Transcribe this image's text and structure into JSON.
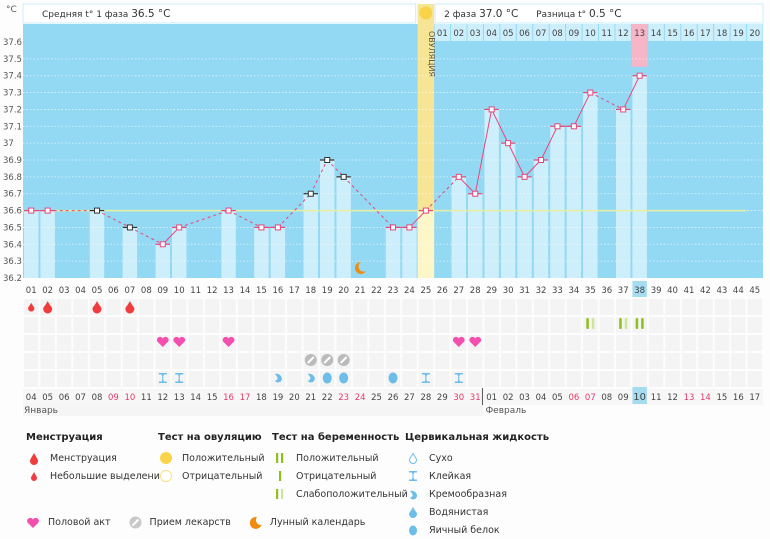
{
  "header": {
    "unit": "°C",
    "phase1_label": "Средняя t° 1 фаза",
    "phase1_value": "36.5 °C",
    "phase2_label": "2 фаза",
    "phase2_value": "37.0 °C",
    "diff_label": "Разница t°",
    "diff_value": "0.5 °C",
    "ovulation_label": "ОВУЛЯЦИЯ"
  },
  "chart_data": {
    "type": "bar",
    "title": "Базальная температура",
    "ylabel": "°C",
    "ylim": [
      36.2,
      37.6
    ],
    "yticks": [
      "37.6",
      "37.5",
      "37.4",
      "37.3",
      "37.2",
      "37.1",
      "37",
      "36.9",
      "36.8",
      "36.7",
      "36.6",
      "36.5",
      "36.4",
      "36.3",
      "36.2"
    ],
    "coverline": 36.6,
    "ovulation_day": 25,
    "today_day": 38,
    "days": [
      "01",
      "02",
      "03",
      "04",
      "05",
      "06",
      "07",
      "08",
      "09",
      "10",
      "11",
      "12",
      "13",
      "14",
      "15",
      "16",
      "17",
      "18",
      "19",
      "20",
      "21",
      "22",
      "23",
      "24",
      "25",
      "26",
      "27",
      "28",
      "29",
      "30",
      "31",
      "32",
      "33",
      "34",
      "35",
      "36",
      "37",
      "38",
      "39",
      "40",
      "41",
      "42",
      "43",
      "44",
      "45"
    ],
    "temperatures": [
      36.6,
      36.6,
      null,
      null,
      36.6,
      null,
      36.5,
      null,
      36.4,
      36.5,
      null,
      null,
      36.6,
      null,
      36.5,
      36.5,
      null,
      36.7,
      36.9,
      36.8,
      null,
      null,
      36.5,
      36.5,
      36.6,
      null,
      36.8,
      36.7,
      37.2,
      37.0,
      36.8,
      36.9,
      37.1,
      37.1,
      37.3,
      null,
      37.2,
      37.4,
      null,
      null,
      null,
      null,
      null,
      null,
      null
    ],
    "excluded_days": [
      5,
      7,
      18,
      19,
      20
    ],
    "phase2_days": [
      "01",
      "02",
      "03",
      "04",
      "05",
      "06",
      "07",
      "08",
      "09",
      "10",
      "11",
      "12",
      "13",
      "14",
      "15",
      "16",
      "17",
      "18",
      "19",
      "20"
    ],
    "phase2_highlight": "13"
  },
  "calendar": {
    "dates": [
      "04",
      "05",
      "06",
      "07",
      "08",
      "09",
      "10",
      "11",
      "12",
      "13",
      "14",
      "15",
      "16",
      "17",
      "18",
      "19",
      "20",
      "21",
      "22",
      "23",
      "24",
      "25",
      "26",
      "27",
      "28",
      "29",
      "30",
      "31",
      "01",
      "02",
      "03",
      "04",
      "05",
      "06",
      "07",
      "08",
      "09",
      "10",
      "11",
      "12",
      "13",
      "14",
      "15",
      "16",
      "17"
    ],
    "weekend_idx": [
      5,
      6,
      12,
      13,
      19,
      20,
      26,
      27,
      33,
      34,
      40,
      41
    ],
    "today_idx": 37,
    "month1": "Январь",
    "month2": "Февраль",
    "month2_start_idx": 28
  },
  "events": {
    "menstruation": [
      {
        "day": 1,
        "type": "light"
      },
      {
        "day": 2,
        "type": "full"
      },
      {
        "day": 5,
        "type": "full"
      },
      {
        "day": 7,
        "type": "full"
      }
    ],
    "pregnancy_test": [
      {
        "day": 35,
        "type": "weak"
      },
      {
        "day": 37,
        "type": "weak"
      },
      {
        "day": 38,
        "type": "positive"
      }
    ],
    "intercourse": [
      9,
      10,
      13,
      27,
      28
    ],
    "medication": [
      18,
      19,
      20
    ],
    "cervical": [
      {
        "day": 9,
        "type": "sticky"
      },
      {
        "day": 10,
        "type": "sticky"
      },
      {
        "day": 16,
        "type": "creamy"
      },
      {
        "day": 18,
        "type": "creamy"
      },
      {
        "day": 19,
        "type": "egg"
      },
      {
        "day": 20,
        "type": "egg"
      },
      {
        "day": 23,
        "type": "egg"
      },
      {
        "day": 25,
        "type": "sticky"
      },
      {
        "day": 27,
        "type": "sticky"
      }
    ],
    "moon": [
      21
    ]
  },
  "legend": {
    "menstruation": {
      "title": "Менструация",
      "items": [
        "Менструация",
        "Небольшие выделения"
      ]
    },
    "ovulation_test": {
      "title": "Тест на овуляцию",
      "items": [
        "Положительный",
        "Отрицательный"
      ]
    },
    "pregnancy_test": {
      "title": "Тест на беременность",
      "items": [
        "Положительный",
        "Отрицательный",
        "Слабоположительный"
      ]
    },
    "cervical": {
      "title": "Цервикальная жидкость",
      "items": [
        "Сухо",
        "Клейкая",
        "Кремообразная",
        "Водянистая",
        "Яичный белок"
      ]
    },
    "bottom": [
      "Половой акт",
      "Прием лекарств",
      "Лунный календарь"
    ]
  },
  "colors": {
    "bg": "#94d9f3",
    "bar": "#cdeefb",
    "line": "#e8477c",
    "ovulation": "#f7e596",
    "coverline": "#e8f0a0",
    "today": "#a6dcf0",
    "highlight": "#f7b5c8",
    "blood": "#f03c3c",
    "heart": "#f24fae",
    "pill": "#bbbbbb",
    "moon": "#f08a10",
    "fluid": "#6cbde8",
    "test": "#8fbf1c",
    "test_weak": "#cde59a",
    "weekend": "#e8386a"
  }
}
